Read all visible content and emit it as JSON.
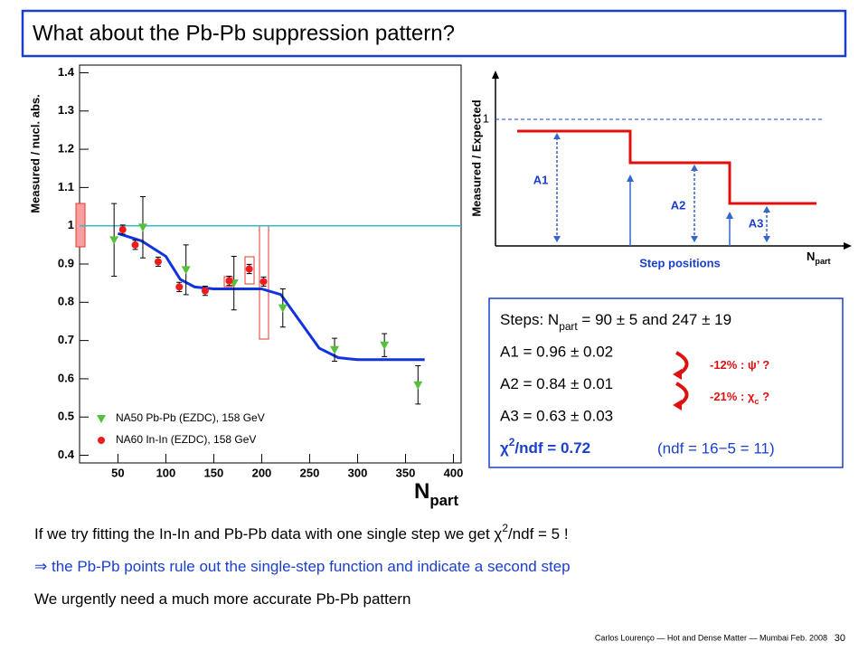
{
  "title": "What about the Pb-Pb suppression pattern?",
  "chart_data": {
    "type": "scatter",
    "y_label": "Measured / nucl. abs.",
    "x_label": [
      {
        "t": "N"
      },
      {
        "t": "part",
        "s": "sub"
      }
    ],
    "xlim": [
      10,
      408
    ],
    "ylim": [
      0.38,
      1.42
    ],
    "xticks": [
      50,
      100,
      150,
      200,
      250,
      300,
      350,
      400
    ],
    "yticks": [
      0.4,
      0.5,
      0.6,
      0.7,
      0.8,
      0.9,
      1,
      1.1,
      1.2,
      1.3,
      1.4
    ],
    "ref_line": {
      "value": 1,
      "color": "#33bbcc"
    },
    "series": [
      {
        "name": "NA50 Pb-Pb (EZDC), 158 GeV",
        "color": "#55c03a",
        "marker": "triangle",
        "x": [
          46,
          76,
          121,
          171,
          222,
          276,
          328,
          363
        ],
        "values": [
          0.963,
          0.996,
          0.885,
          0.85,
          0.785,
          0.676,
          0.688,
          0.584
        ],
        "errors": [
          0.095,
          0.08,
          0.065,
          0.07,
          0.05,
          0.03,
          0.03,
          0.05
        ]
      },
      {
        "name": "NA60 In-In (EZDC), 158 GeV",
        "color": "#ee1c1c",
        "marker": "circle",
        "x": [
          55,
          68,
          92,
          114,
          141,
          166,
          187,
          202
        ],
        "values": [
          0.99,
          0.95,
          0.906,
          0.84,
          0.83,
          0.856,
          0.887,
          0.854
        ],
        "errors": [
          0.012,
          0.012,
          0.012,
          0.012,
          0.012,
          0.012,
          0.012,
          0.012
        ]
      }
    ],
    "fit": {
      "color": "#1133dd",
      "x": [
        50,
        75,
        100,
        115,
        130,
        150,
        200,
        220,
        240,
        260,
        280,
        300,
        370
      ],
      "values": [
        0.98,
        0.96,
        0.92,
        0.86,
        0.84,
        0.835,
        0.835,
        0.82,
        0.75,
        0.68,
        0.655,
        0.65,
        0.65
      ]
    }
  },
  "diagram": {
    "y_label": "Measured / Expected",
    "tick": "1",
    "a1": "A1",
    "a2": "A2",
    "a3": "A3",
    "steps": "Step positions",
    "x_label": [
      {
        "t": "N"
      },
      {
        "t": "part",
        "s": "sub"
      }
    ]
  },
  "box": {
    "lines": [
      [
        {
          "t": "Steps: N"
        },
        {
          "t": "part",
          "s": "sub"
        },
        {
          "t": " = 90 ± 5 and 247 ± 19"
        }
      ],
      [
        {
          "t": "A1 = 0.96 ± 0.02"
        }
      ],
      [
        {
          "t": "A2 = 0.84 ± 0.01"
        }
      ],
      [
        {
          "t": "A3 = 0.63 ± 0.03"
        }
      ],
      [
        {
          "t": "χ"
        },
        {
          "t": "2",
          "s": "sup"
        },
        {
          "t": "/ndf = 0.72"
        }
      ]
    ],
    "ndf": "(ndf = 16−5 = 11)",
    "psi": [
      {
        "t": "-12% : ψ’ ?"
      }
    ],
    "chic": [
      {
        "t": "-21% : χ"
      },
      {
        "t": "c",
        "s": "sub"
      },
      {
        "t": " ?"
      }
    ]
  },
  "notes": [
    [
      {
        "t": "If we try fitting the In-In and Pb-Pb data with one single step we get χ"
      },
      {
        "t": "2",
        "s": "sup"
      },
      {
        "t": "/ndf = 5 !"
      }
    ],
    [
      {
        "t": "⇒ the Pb-Pb points rule out the single-step function and indicate a second step"
      }
    ],
    [
      {
        "t": "We urgently need a much more accurate Pb-Pb pattern"
      }
    ]
  ],
  "footer": "Carlos Lourenço — Hot and Dense Matter — Mumbai Feb. 2008",
  "page": "30"
}
